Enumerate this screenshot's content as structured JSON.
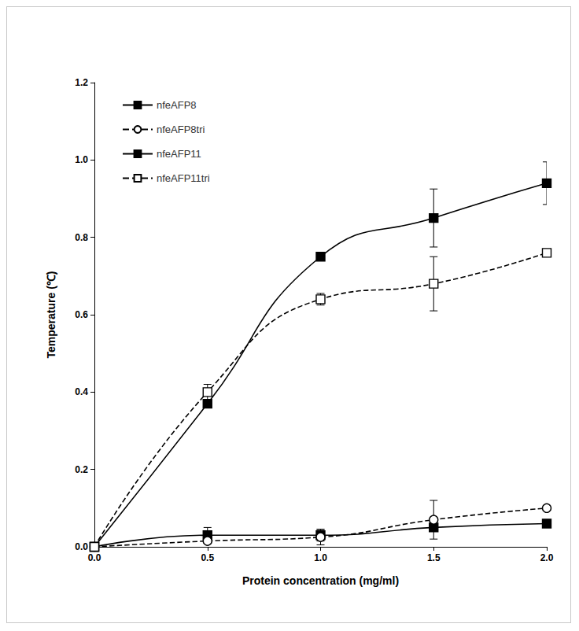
{
  "chart_data": {
    "type": "line",
    "x_label": "Protein concentration (mg/ml)",
    "y_label": "Temperature (℃)",
    "x": [
      0,
      0.5,
      1.0,
      1.5,
      2.0
    ],
    "xlim": [
      0,
      2.0
    ],
    "xticks": [
      {
        "value": 0,
        "label": "0.0"
      },
      0.5,
      {
        "value": 1,
        "label": "1.0"
      },
      1.5,
      {
        "value": 2,
        "label": "2.0"
      }
    ],
    "ylim": [
      0,
      1.2
    ],
    "yticks": [
      {
        "value": 0,
        "label": "0.0"
      },
      0.2,
      0.4,
      0.6,
      0.8,
      {
        "value": 1,
        "label": "1.0"
      },
      1.2
    ],
    "grid": false,
    "legend": "upper left",
    "series": [
      {
        "name": "nfeAFP8",
        "color": "#000000",
        "marker": "square",
        "line_style": "solid",
        "values": [
          0,
          0.03,
          0.03,
          0.05,
          0.06
        ],
        "errors": [
          0,
          0.02,
          0.015,
          0.01,
          0.01
        ]
      },
      {
        "name": "nfeAFP8tri",
        "color": "#000000",
        "marker": "circle_open",
        "line_style": "dashed",
        "values": [
          0,
          0.015,
          0.025,
          0.07,
          0.1
        ],
        "errors": [
          0,
          0.005,
          0.02,
          0.05,
          0.005
        ]
      },
      {
        "name": "nfeAFP11",
        "color": "#000000",
        "marker": "square",
        "line_style": "solid",
        "values": [
          0,
          0.37,
          0.75,
          0.85,
          0.94
        ],
        "errors": [
          0,
          0.01,
          0.005,
          0.075,
          0.055
        ]
      },
      {
        "name": "nfeAFP11tri",
        "color": "#000000",
        "marker": "square_open",
        "line_style": "dashed",
        "values": [
          0,
          0.4,
          0.64,
          0.68,
          0.76
        ],
        "errors": [
          0,
          0.02,
          0.015,
          0.07,
          0.01
        ]
      }
    ]
  }
}
